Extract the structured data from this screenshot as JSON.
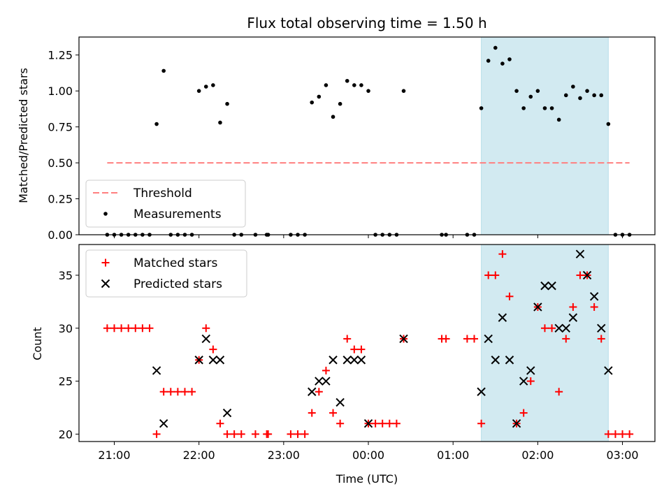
{
  "chart_data": [
    {
      "type": "scatter",
      "title": "Flux total observing time = 1.50 h",
      "xlabel": "",
      "ylabel": "Matched/Predicted stars",
      "ylim": [
        0,
        1.375
      ],
      "yticks": [
        "0.00",
        "0.25",
        "0.50",
        "0.75",
        "1.00",
        "1.25"
      ],
      "xlim": [
        "20:35",
        "03:23"
      ],
      "shaded_interval": [
        "01:20",
        "02:50"
      ],
      "shade_color": "#add8e6",
      "legend_position": "lower-left",
      "series": [
        {
          "name": "Threshold",
          "style": "dashed-line",
          "color": "#ff7f7f",
          "points": [
            [
              "20:55",
              0.5
            ],
            [
              "03:05",
              0.5
            ]
          ]
        },
        {
          "name": "Measurements",
          "style": "dot",
          "color": "#000000",
          "points": [
            [
              "20:55",
              0
            ],
            [
              "21:00",
              0
            ],
            [
              "21:05",
              0
            ],
            [
              "21:10",
              0
            ],
            [
              "21:15",
              0
            ],
            [
              "21:20",
              0
            ],
            [
              "21:25",
              0
            ],
            [
              "21:30",
              0.77
            ],
            [
              "21:35",
              1.14
            ],
            [
              "21:40",
              0
            ],
            [
              "21:45",
              0
            ],
            [
              "21:50",
              0
            ],
            [
              "21:55",
              0
            ],
            [
              "22:00",
              1.0
            ],
            [
              "22:05",
              1.03
            ],
            [
              "22:10",
              1.04
            ],
            [
              "22:15",
              0.78
            ],
            [
              "22:20",
              0.91
            ],
            [
              "22:25",
              0
            ],
            [
              "22:30",
              0
            ],
            [
              "22:40",
              0
            ],
            [
              "22:48",
              0
            ],
            [
              "22:49",
              0
            ],
            [
              "23:05",
              0
            ],
            [
              "23:10",
              0
            ],
            [
              "23:15",
              0
            ],
            [
              "23:20",
              0.92
            ],
            [
              "23:25",
              0.96
            ],
            [
              "23:30",
              1.04
            ],
            [
              "23:35",
              0.82
            ],
            [
              "23:40",
              0.91
            ],
            [
              "23:45",
              1.07
            ],
            [
              "23:50",
              1.04
            ],
            [
              "23:55",
              1.04
            ],
            [
              "00:00",
              1.0
            ],
            [
              "00:05",
              0
            ],
            [
              "00:10",
              0
            ],
            [
              "00:15",
              0
            ],
            [
              "00:20",
              0
            ],
            [
              "00:25",
              1.0
            ],
            [
              "00:52",
              0
            ],
            [
              "00:55",
              0
            ],
            [
              "01:10",
              0
            ],
            [
              "01:15",
              0
            ],
            [
              "01:20",
              0.88
            ],
            [
              "01:25",
              1.21
            ],
            [
              "01:30",
              1.3
            ],
            [
              "01:35",
              1.19
            ],
            [
              "01:40",
              1.22
            ],
            [
              "01:45",
              1.0
            ],
            [
              "01:50",
              0.88
            ],
            [
              "01:55",
              0.96
            ],
            [
              "02:00",
              1.0
            ],
            [
              "02:05",
              0.88
            ],
            [
              "02:10",
              0.88
            ],
            [
              "02:15",
              0.8
            ],
            [
              "02:20",
              0.97
            ],
            [
              "02:25",
              1.03
            ],
            [
              "02:30",
              0.95
            ],
            [
              "02:35",
              1.0
            ],
            [
              "02:40",
              0.97
            ],
            [
              "02:45",
              0.97
            ],
            [
              "02:50",
              0.77
            ],
            [
              "02:55",
              0
            ],
            [
              "03:00",
              0
            ],
            [
              "03:05",
              0
            ]
          ]
        }
      ]
    },
    {
      "type": "scatter",
      "title": "",
      "xlabel": "Time (UTC)",
      "ylabel": "Count",
      "ylim": [
        19.3,
        37.9
      ],
      "yticks": [
        "20",
        "25",
        "30",
        "35"
      ],
      "xticks": [
        "21:00",
        "22:00",
        "23:00",
        "00:00",
        "01:00",
        "02:00",
        "03:00"
      ],
      "xlim": [
        "20:35",
        "03:23"
      ],
      "shaded_interval": [
        "01:20",
        "02:50"
      ],
      "legend_position": "upper-left",
      "series": [
        {
          "name": "Matched stars",
          "style": "plus",
          "color": "#ff0000",
          "points": [
            [
              "20:55",
              30
            ],
            [
              "21:00",
              30
            ],
            [
              "21:05",
              30
            ],
            [
              "21:10",
              30
            ],
            [
              "21:15",
              30
            ],
            [
              "21:20",
              30
            ],
            [
              "21:25",
              30
            ],
            [
              "21:30",
              20
            ],
            [
              "21:35",
              24
            ],
            [
              "21:40",
              24
            ],
            [
              "21:45",
              24
            ],
            [
              "21:50",
              24
            ],
            [
              "21:55",
              24
            ],
            [
              "22:00",
              27
            ],
            [
              "22:05",
              30
            ],
            [
              "22:10",
              28
            ],
            [
              "22:15",
              21
            ],
            [
              "22:20",
              20
            ],
            [
              "22:25",
              20
            ],
            [
              "22:30",
              20
            ],
            [
              "22:40",
              20
            ],
            [
              "22:48",
              20
            ],
            [
              "22:49",
              20
            ],
            [
              "23:05",
              20
            ],
            [
              "23:10",
              20
            ],
            [
              "23:15",
              20
            ],
            [
              "23:20",
              22
            ],
            [
              "23:25",
              24
            ],
            [
              "23:30",
              26
            ],
            [
              "23:35",
              22
            ],
            [
              "23:40",
              21
            ],
            [
              "23:45",
              29
            ],
            [
              "23:50",
              28
            ],
            [
              "23:55",
              28
            ],
            [
              "00:00",
              21
            ],
            [
              "00:05",
              21
            ],
            [
              "00:10",
              21
            ],
            [
              "00:15",
              21
            ],
            [
              "00:20",
              21
            ],
            [
              "00:25",
              29
            ],
            [
              "00:52",
              29
            ],
            [
              "00:55",
              29
            ],
            [
              "01:10",
              29
            ],
            [
              "01:15",
              29
            ],
            [
              "01:20",
              21
            ],
            [
              "01:25",
              35
            ],
            [
              "01:30",
              35
            ],
            [
              "01:35",
              37
            ],
            [
              "01:40",
              33
            ],
            [
              "01:45",
              21
            ],
            [
              "01:50",
              22
            ],
            [
              "01:55",
              25
            ],
            [
              "02:00",
              32
            ],
            [
              "02:05",
              30
            ],
            [
              "02:10",
              30
            ],
            [
              "02:15",
              24
            ],
            [
              "02:20",
              29
            ],
            [
              "02:25",
              32
            ],
            [
              "02:30",
              35
            ],
            [
              "02:35",
              35
            ],
            [
              "02:40",
              32
            ],
            [
              "02:45",
              29
            ],
            [
              "02:50",
              20
            ],
            [
              "02:55",
              20
            ],
            [
              "03:00",
              20
            ],
            [
              "03:05",
              20
            ]
          ]
        },
        {
          "name": "Predicted stars",
          "style": "x",
          "color": "#000000",
          "points": [
            [
              "21:30",
              26
            ],
            [
              "21:35",
              21
            ],
            [
              "22:00",
              27
            ],
            [
              "22:05",
              29
            ],
            [
              "22:10",
              27
            ],
            [
              "22:15",
              27
            ],
            [
              "22:20",
              22
            ],
            [
              "23:20",
              24
            ],
            [
              "23:25",
              25
            ],
            [
              "23:30",
              25
            ],
            [
              "23:35",
              27
            ],
            [
              "23:40",
              23
            ],
            [
              "23:45",
              27
            ],
            [
              "23:50",
              27
            ],
            [
              "23:55",
              27
            ],
            [
              "00:00",
              21
            ],
            [
              "00:25",
              29
            ],
            [
              "01:20",
              24
            ],
            [
              "01:25",
              29
            ],
            [
              "01:30",
              27
            ],
            [
              "01:35",
              31
            ],
            [
              "01:40",
              27
            ],
            [
              "01:45",
              21
            ],
            [
              "01:50",
              25
            ],
            [
              "01:55",
              26
            ],
            [
              "02:00",
              32
            ],
            [
              "02:05",
              34
            ],
            [
              "02:10",
              34
            ],
            [
              "02:15",
              30
            ],
            [
              "02:20",
              30
            ],
            [
              "02:25",
              31
            ],
            [
              "02:30",
              37
            ],
            [
              "02:35",
              35
            ],
            [
              "02:40",
              33
            ],
            [
              "02:45",
              30
            ],
            [
              "02:50",
              26
            ]
          ]
        }
      ]
    }
  ]
}
